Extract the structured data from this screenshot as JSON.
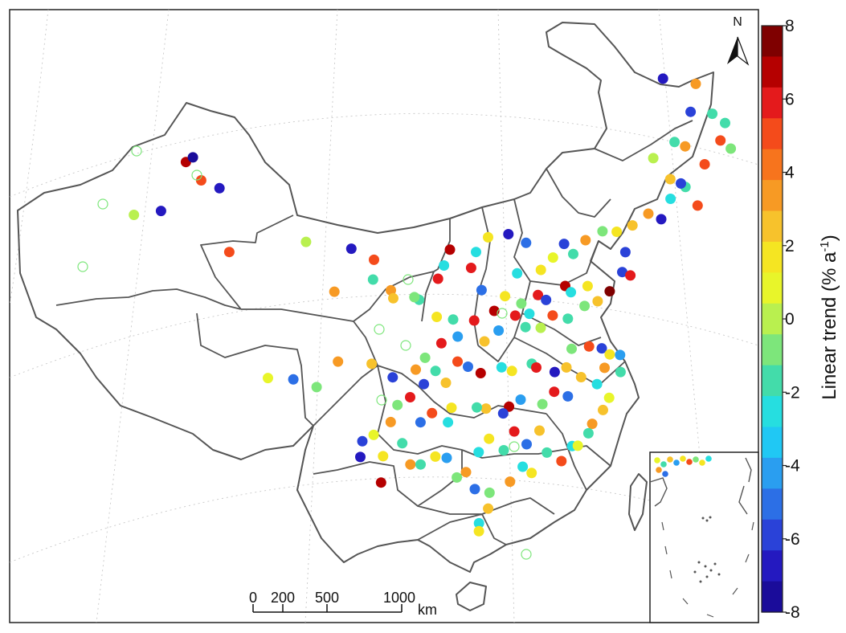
{
  "map": {
    "colorbar": {
      "label": "Linear trend (% a",
      "label_sup": "-1",
      "label_close": ")",
      "range": [
        -8,
        8
      ],
      "ticks": [
        "8",
        "6",
        "4",
        "2",
        "0",
        "-2",
        "-4",
        "-6",
        "-8"
      ],
      "colors": [
        "#7f0000",
        "#b50000",
        "#e41a1c",
        "#f44b1b",
        "#f7741d",
        "#f79a24",
        "#f7c22c",
        "#f5e522",
        "#e8f52a",
        "#b9f04f",
        "#7de67b",
        "#43dcaa",
        "#26dee0",
        "#20c8f4",
        "#2a9ef0",
        "#2c6fe6",
        "#2a42d8",
        "#2419c0",
        "#1a0c9a"
      ]
    },
    "north_arrow": {
      "label": "N"
    },
    "scale_bar": {
      "labels": [
        "0",
        "200",
        "500",
        "1000"
      ],
      "unit": "km"
    },
    "stations": {
      "value_range": [
        -8,
        8
      ],
      "points": [
        {
          "lon": 124.1,
          "lat": 52.0,
          "v": -7
        },
        {
          "lon": 126.8,
          "lat": 51.4,
          "v": 4
        },
        {
          "lon": 126.5,
          "lat": 49.3,
          "v": -6
        },
        {
          "lon": 128.3,
          "lat": 49.0,
          "v": -2
        },
        {
          "lon": 129.4,
          "lat": 48.2,
          "v": -2
        },
        {
          "lon": 129.1,
          "lat": 46.9,
          "v": 5
        },
        {
          "lon": 130.0,
          "lat": 46.2,
          "v": -1
        },
        {
          "lon": 125.3,
          "lat": 47.1,
          "v": -2
        },
        {
          "lon": 126.2,
          "lat": 46.7,
          "v": 4
        },
        {
          "lon": 127.9,
          "lat": 45.2,
          "v": 5
        },
        {
          "lon": 123.6,
          "lat": 46.0,
          "v": 0
        },
        {
          "lon": 125.1,
          "lat": 44.3,
          "v": 3
        },
        {
          "lon": 126.4,
          "lat": 43.6,
          "v": -2
        },
        {
          "lon": 126.0,
          "lat": 43.9,
          "v": -6
        },
        {
          "lon": 127.5,
          "lat": 42.1,
          "v": 5
        },
        {
          "lon": 125.2,
          "lat": 42.8,
          "v": -3
        },
        {
          "lon": 124.5,
          "lat": 41.3,
          "v": -7
        },
        {
          "lon": 123.4,
          "lat": 41.8,
          "v": 4
        },
        {
          "lon": 122.1,
          "lat": 41.0,
          "v": 3
        },
        {
          "lon": 121.6,
          "lat": 39.0,
          "v": -6
        },
        {
          "lon": 120.8,
          "lat": 40.6,
          "v": 2
        },
        {
          "lon": 119.6,
          "lat": 40.7,
          "v": -1
        },
        {
          "lon": 118.2,
          "lat": 40.1,
          "v": 4
        },
        {
          "lon": 117.2,
          "lat": 39.1,
          "v": -2
        },
        {
          "lon": 116.4,
          "lat": 39.9,
          "v": -6
        },
        {
          "lon": 115.5,
          "lat": 38.9,
          "v": 1
        },
        {
          "lon": 114.5,
          "lat": 38.0,
          "v": 2
        },
        {
          "lon": 113.2,
          "lat": 40.1,
          "v": -5
        },
        {
          "lon": 112.5,
          "lat": 37.8,
          "v": -3
        },
        {
          "lon": 111.7,
          "lat": 40.8,
          "v": -7
        },
        {
          "lon": 110.0,
          "lat": 40.6,
          "v": 2
        },
        {
          "lon": 109.0,
          "lat": 39.5,
          "v": -3
        },
        {
          "lon": 106.8,
          "lat": 39.7,
          "v": 7
        },
        {
          "lon": 108.6,
          "lat": 38.3,
          "v": 6
        },
        {
          "lon": 106.3,
          "lat": 38.5,
          "v": -3
        },
        {
          "lon": 105.8,
          "lat": 37.5,
          "v": 6
        },
        {
          "lon": 104.2,
          "lat": 35.9,
          "v": -2
        },
        {
          "lon": 103.8,
          "lat": 36.1,
          "v": -1
        },
        {
          "lon": 101.8,
          "lat": 36.6,
          "v": 4
        },
        {
          "lon": 100.3,
          "lat": 37.4,
          "v": -2
        },
        {
          "lon": 98.5,
          "lat": 39.7,
          "v": -7
        },
        {
          "lon": 100.4,
          "lat": 38.9,
          "v": 5
        },
        {
          "lon": 94.7,
          "lat": 40.1,
          "v": 0
        },
        {
          "lon": 97.0,
          "lat": 36.4,
          "v": 4
        },
        {
          "lon": 102.0,
          "lat": 36.0,
          "v": 3
        },
        {
          "lon": 105.7,
          "lat": 34.6,
          "v": 2
        },
        {
          "lon": 107.1,
          "lat": 34.4,
          "v": -2
        },
        {
          "lon": 108.9,
          "lat": 34.3,
          "v": 6
        },
        {
          "lon": 109.5,
          "lat": 36.6,
          "v": -5
        },
        {
          "lon": 110.6,
          "lat": 35.0,
          "v": 7
        },
        {
          "lon": 111.5,
          "lat": 36.1,
          "v": 2
        },
        {
          "lon": 112.9,
          "lat": 35.5,
          "v": -1
        },
        {
          "lon": 113.6,
          "lat": 34.7,
          "v": -3
        },
        {
          "lon": 114.3,
          "lat": 36.1,
          "v": 6
        },
        {
          "lon": 115.0,
          "lat": 35.7,
          "v": -6
        },
        {
          "lon": 116.6,
          "lat": 36.7,
          "v": 7
        },
        {
          "lon": 117.1,
          "lat": 36.2,
          "v": -3
        },
        {
          "lon": 118.5,
          "lat": 36.6,
          "v": 2
        },
        {
          "lon": 120.4,
          "lat": 36.1,
          "v": 8
        },
        {
          "lon": 121.4,
          "lat": 37.5,
          "v": -6
        },
        {
          "lon": 122.1,
          "lat": 37.2,
          "v": 6
        },
        {
          "lon": 119.4,
          "lat": 35.4,
          "v": 3
        },
        {
          "lon": 118.3,
          "lat": 35.1,
          "v": -1
        },
        {
          "lon": 116.9,
          "lat": 34.2,
          "v": -2
        },
        {
          "lon": 115.6,
          "lat": 34.5,
          "v": 5
        },
        {
          "lon": 114.6,
          "lat": 33.6,
          "v": 0
        },
        {
          "lon": 113.3,
          "lat": 33.7,
          "v": -2
        },
        {
          "lon": 112.4,
          "lat": 34.6,
          "v": 6
        },
        {
          "lon": 111.0,
          "lat": 33.5,
          "v": -4
        },
        {
          "lon": 109.8,
          "lat": 32.7,
          "v": 3
        },
        {
          "lon": 107.5,
          "lat": 33.1,
          "v": -4
        },
        {
          "lon": 106.1,
          "lat": 32.6,
          "v": 6
        },
        {
          "lon": 104.7,
          "lat": 31.5,
          "v": -1
        },
        {
          "lon": 103.9,
          "lat": 30.6,
          "v": 4
        },
        {
          "lon": 104.6,
          "lat": 29.5,
          "v": -6
        },
        {
          "lon": 106.5,
          "lat": 29.6,
          "v": 3
        },
        {
          "lon": 105.6,
          "lat": 30.5,
          "v": -2
        },
        {
          "lon": 107.5,
          "lat": 31.2,
          "v": 5
        },
        {
          "lon": 108.4,
          "lat": 30.8,
          "v": -5
        },
        {
          "lon": 109.5,
          "lat": 30.3,
          "v": 7
        },
        {
          "lon": 111.3,
          "lat": 30.7,
          "v": -3
        },
        {
          "lon": 112.2,
          "lat": 30.4,
          "v": 2
        },
        {
          "lon": 113.9,
          "lat": 30.9,
          "v": -2
        },
        {
          "lon": 114.3,
          "lat": 30.6,
          "v": 6
        },
        {
          "lon": 115.9,
          "lat": 30.2,
          "v": -7
        },
        {
          "lon": 116.9,
          "lat": 30.5,
          "v": 3
        },
        {
          "lon": 117.3,
          "lat": 31.9,
          "v": -1
        },
        {
          "lon": 118.8,
          "lat": 32.0,
          "v": 5
        },
        {
          "lon": 119.9,
          "lat": 31.8,
          "v": -6
        },
        {
          "lon": 120.6,
          "lat": 31.3,
          "v": 2
        },
        {
          "lon": 121.5,
          "lat": 31.2,
          "v": -4
        },
        {
          "lon": 120.2,
          "lat": 30.3,
          "v": 4
        },
        {
          "lon": 121.6,
          "lat": 29.9,
          "v": -2
        },
        {
          "lon": 120.7,
          "lat": 28.0,
          "v": 1
        },
        {
          "lon": 119.6,
          "lat": 29.1,
          "v": -3
        },
        {
          "lon": 118.2,
          "lat": 29.7,
          "v": 3
        },
        {
          "lon": 117.1,
          "lat": 28.3,
          "v": -5
        },
        {
          "lon": 115.9,
          "lat": 28.7,
          "v": 6
        },
        {
          "lon": 114.9,
          "lat": 27.8,
          "v": -1
        },
        {
          "lon": 113.0,
          "lat": 28.2,
          "v": -4
        },
        {
          "lon": 112.0,
          "lat": 27.7,
          "v": 7
        },
        {
          "lon": 111.5,
          "lat": 27.2,
          "v": -6
        },
        {
          "lon": 110.0,
          "lat": 27.6,
          "v": 3
        },
        {
          "lon": 109.2,
          "lat": 27.7,
          "v": -2
        },
        {
          "lon": 107.0,
          "lat": 27.7,
          "v": 2
        },
        {
          "lon": 106.7,
          "lat": 26.6,
          "v": -3
        },
        {
          "lon": 105.3,
          "lat": 27.3,
          "v": 5
        },
        {
          "lon": 104.3,
          "lat": 26.6,
          "v": -5
        },
        {
          "lon": 103.4,
          "lat": 28.5,
          "v": 6
        },
        {
          "lon": 102.3,
          "lat": 27.9,
          "v": -1
        },
        {
          "lon": 101.7,
          "lat": 26.6,
          "v": 4
        },
        {
          "lon": 102.7,
          "lat": 25.0,
          "v": -2
        },
        {
          "lon": 100.2,
          "lat": 25.6,
          "v": 1
        },
        {
          "lon": 99.2,
          "lat": 25.1,
          "v": -6
        },
        {
          "lon": 100.8,
          "lat": 22.0,
          "v": 7
        },
        {
          "lon": 99.0,
          "lat": 23.9,
          "v": -7
        },
        {
          "lon": 101.0,
          "lat": 24.0,
          "v": 2
        },
        {
          "lon": 103.4,
          "lat": 23.4,
          "v": 4
        },
        {
          "lon": 104.3,
          "lat": 23.4,
          "v": -2
        },
        {
          "lon": 105.6,
          "lat": 24.0,
          "v": 2
        },
        {
          "lon": 106.6,
          "lat": 23.9,
          "v": -4
        },
        {
          "lon": 107.5,
          "lat": 22.4,
          "v": -1
        },
        {
          "lon": 108.3,
          "lat": 22.8,
          "v": 4
        },
        {
          "lon": 109.4,
          "lat": 24.3,
          "v": -3
        },
        {
          "lon": 110.3,
          "lat": 25.3,
          "v": 2
        },
        {
          "lon": 111.6,
          "lat": 24.4,
          "v": -2
        },
        {
          "lon": 112.5,
          "lat": 25.8,
          "v": 6
        },
        {
          "lon": 113.6,
          "lat": 24.8,
          "v": -5
        },
        {
          "lon": 114.7,
          "lat": 25.8,
          "v": 3
        },
        {
          "lon": 115.4,
          "lat": 24.1,
          "v": -2
        },
        {
          "lon": 116.7,
          "lat": 23.4,
          "v": 5
        },
        {
          "lon": 117.6,
          "lat": 24.5,
          "v": -3
        },
        {
          "lon": 118.1,
          "lat": 24.5,
          "v": 1
        },
        {
          "lon": 119.3,
          "lat": 26.1,
          "v": 4
        },
        {
          "lon": 119.0,
          "lat": 25.4,
          "v": -2
        },
        {
          "lon": 120.2,
          "lat": 27.1,
          "v": 3
        },
        {
          "lon": 113.3,
          "lat": 23.1,
          "v": -3
        },
        {
          "lon": 114.1,
          "lat": 22.6,
          "v": 2
        },
        {
          "lon": 112.2,
          "lat": 22.0,
          "v": 4
        },
        {
          "lon": 110.4,
          "lat": 21.2,
          "v": -1
        },
        {
          "lon": 109.1,
          "lat": 21.5,
          "v": -5
        },
        {
          "lon": 110.3,
          "lat": 20.0,
          "v": 3
        },
        {
          "lon": 109.5,
          "lat": 18.9,
          "v": -3
        },
        {
          "lon": 109.5,
          "lat": 18.3,
          "v": 2
        },
        {
          "lon": 87.6,
          "lat": 43.8,
          "v": -7
        },
        {
          "lon": 86.1,
          "lat": 44.3,
          "v": 5
        },
        {
          "lon": 84.9,
          "lat": 45.6,
          "v": 7
        },
        {
          "lon": 82.6,
          "lat": 41.7,
          "v": -7
        },
        {
          "lon": 80.3,
          "lat": 41.2,
          "v": 0
        },
        {
          "lon": 85.5,
          "lat": 46.0,
          "v": -8
        },
        {
          "lon": 88.2,
          "lat": 39.0,
          "v": 5
        },
        {
          "lon": 91.1,
          "lat": 29.6,
          "v": 1
        },
        {
          "lon": 93.3,
          "lat": 29.6,
          "v": -5
        },
        {
          "lon": 97.2,
          "lat": 31.1,
          "v": 4
        },
        {
          "lon": 95.3,
          "lat": 29.1,
          "v": -1
        },
        {
          "lon": 100.1,
          "lat": 31.0,
          "v": 3
        },
        {
          "lon": 101.9,
          "lat": 30.0,
          "v": -6
        }
      ]
    }
  }
}
